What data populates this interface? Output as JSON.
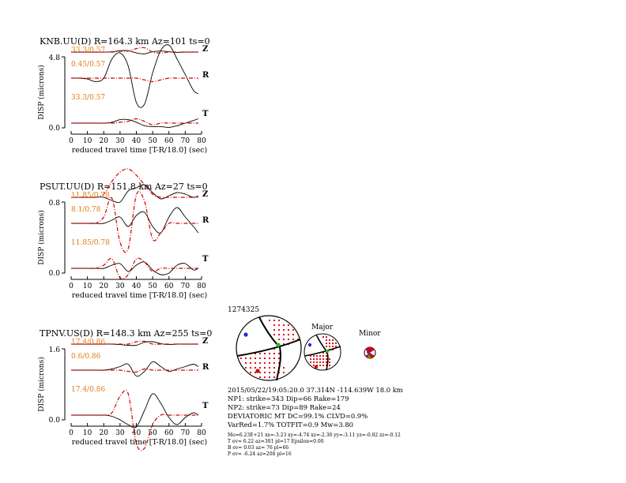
{
  "chart_data": [
    {
      "type": "line",
      "title": "KNB.UU(D) R=164.3 km Az=101 ts=0",
      "ylabel": "DISP (microns)",
      "xlabel": "reduced travel time [T-R/18.0] (sec)",
      "xlim": [
        0,
        80
      ],
      "xticks": [
        "0",
        "10",
        "20",
        "30",
        "40",
        "50",
        "60",
        "70",
        "80"
      ],
      "yticks": [
        "4.8",
        "0.0"
      ],
      "traces": [
        {
          "component": "Z",
          "label": "33.3/0.57",
          "x": [
            0,
            5,
            10,
            15,
            20,
            25,
            30,
            35,
            40,
            45,
            50,
            55,
            60,
            65,
            70,
            75,
            78
          ],
          "observed": [
            0,
            0,
            0,
            0,
            0,
            0.02,
            0.08,
            0.08,
            -0.05,
            -0.1,
            0.02,
            0.06,
            0.02,
            -0.02,
            0,
            0,
            0
          ],
          "synthetic": [
            0,
            0,
            0,
            0,
            0,
            0,
            0.05,
            0.06,
            0.2,
            0.25,
            0,
            -0.05,
            0,
            0,
            0,
            0,
            0
          ]
        },
        {
          "component": "R",
          "label": "0.45/0.57",
          "x": [
            0,
            5,
            10,
            15,
            20,
            25,
            30,
            35,
            40,
            45,
            50,
            55,
            60,
            65,
            70,
            75,
            78
          ],
          "observed": [
            0,
            0,
            -0.05,
            -0.2,
            0,
            1.1,
            1.45,
            0.7,
            -1.4,
            -1.5,
            0.3,
            1.6,
            1.9,
            1.1,
            0.2,
            -0.7,
            -0.9
          ],
          "synthetic": [
            0,
            0,
            0,
            0,
            0,
            0,
            0,
            0,
            0,
            -0.1,
            -0.2,
            -0.1,
            0,
            0,
            0,
            0,
            0
          ]
        },
        {
          "component": "T",
          "label": "33.3/0.57",
          "x": [
            0,
            5,
            10,
            15,
            20,
            25,
            30,
            35,
            40,
            45,
            50,
            55,
            60,
            65,
            70,
            75,
            78
          ],
          "observed": [
            0,
            0,
            0,
            0,
            0,
            0.05,
            0.2,
            0.2,
            0.05,
            -0.15,
            -0.2,
            -0.2,
            -0.25,
            -0.15,
            0,
            0.15,
            0.25
          ],
          "synthetic": [
            0,
            0,
            0,
            0,
            0,
            0,
            0.05,
            0.1,
            0.25,
            0.1,
            -0.1,
            0,
            0,
            0,
            0,
            0,
            0
          ]
        }
      ]
    },
    {
      "type": "line",
      "title": "PSUT.UU(D) R=151.8 km Az=27 ts=0",
      "ylabel": "DISP (microns)",
      "xlabel": "reduced travel time [T-R/18.0] (sec)",
      "xlim": [
        0,
        80
      ],
      "xticks": [
        "0",
        "10",
        "20",
        "30",
        "40",
        "50",
        "60",
        "70",
        "80"
      ],
      "yticks": [
        "0.8",
        "0.0"
      ],
      "traces": [
        {
          "component": "Z",
          "label": "11.85/0.78",
          "x": [
            0,
            5,
            10,
            15,
            20,
            25,
            30,
            35,
            40,
            45,
            50,
            55,
            60,
            65,
            70,
            75,
            78
          ],
          "observed": [
            0,
            0,
            0,
            0,
            0,
            -0.1,
            -0.15,
            0.2,
            0.3,
            0.4,
            0.15,
            -0.05,
            0.05,
            0.15,
            0.1,
            0,
            0.05
          ],
          "synthetic": [
            0,
            0,
            0,
            0,
            0.1,
            0.5,
            0.8,
            0.9,
            0.7,
            0.4,
            0.1,
            0,
            0,
            0,
            0,
            0,
            0
          ]
        },
        {
          "component": "R",
          "label": "8.1/0.78",
          "x": [
            0,
            5,
            10,
            15,
            20,
            25,
            30,
            35,
            40,
            45,
            50,
            55,
            60,
            65,
            70,
            75,
            78
          ],
          "observed": [
            0,
            0,
            0,
            0,
            0,
            0.1,
            0.2,
            -0.1,
            0.25,
            0.35,
            -0.1,
            -0.3,
            0.2,
            0.5,
            0.2,
            -0.1,
            -0.3
          ],
          "synthetic": [
            0,
            0,
            0,
            0,
            0.2,
            0.8,
            -0.6,
            -0.8,
            0.9,
            0.7,
            -0.5,
            -0.3,
            0,
            0,
            0,
            0,
            0
          ]
        },
        {
          "component": "T",
          "label": "11.85/0.78",
          "x": [
            0,
            5,
            10,
            15,
            20,
            25,
            30,
            35,
            40,
            45,
            50,
            55,
            60,
            65,
            70,
            75,
            78
          ],
          "observed": [
            0,
            0,
            0,
            0,
            0,
            0.1,
            0.15,
            -0.1,
            0.1,
            0.2,
            -0.05,
            -0.2,
            -0.15,
            0.1,
            0.15,
            -0.05,
            0
          ],
          "synthetic": [
            0,
            0,
            0,
            0,
            0.1,
            0.3,
            -0.3,
            -0.2,
            0.3,
            0.2,
            -0.1,
            0,
            0,
            0,
            0,
            0,
            0
          ]
        }
      ]
    },
    {
      "type": "line",
      "title": "TPNV.US(D) R=148.3 km Az=255 ts=0",
      "ylabel": "DISP (microns)",
      "xlabel": "reduced travel time [T-R/18.0] (sec)",
      "xlim": [
        0,
        80
      ],
      "xticks": [
        "0",
        "10",
        "20",
        "30",
        "40",
        "50",
        "60",
        "70",
        "80"
      ],
      "yticks": [
        "1.6",
        "0.0"
      ],
      "traces": [
        {
          "component": "Z",
          "label": "17.4/0.86",
          "x": [
            0,
            5,
            10,
            15,
            20,
            25,
            30,
            35,
            40,
            45,
            50,
            55,
            60,
            65,
            70,
            75,
            78
          ],
          "observed": [
            0,
            0,
            0,
            0,
            0,
            0,
            -0.02,
            -0.05,
            -0.05,
            0.08,
            0.1,
            0.02,
            -0.02,
            0,
            0,
            0,
            0
          ],
          "synthetic": [
            0,
            0,
            0,
            0,
            0,
            0,
            0,
            0,
            0.1,
            0.12,
            0,
            0,
            0,
            0,
            0,
            0,
            0
          ]
        },
        {
          "component": "R",
          "label": "0.6/0.86",
          "x": [
            0,
            5,
            10,
            15,
            20,
            25,
            30,
            35,
            40,
            45,
            50,
            55,
            60,
            65,
            70,
            75,
            78
          ],
          "observed": [
            0,
            0,
            0,
            0,
            0,
            0.05,
            0.15,
            0.25,
            -0.25,
            -0.05,
            0.35,
            0.15,
            -0.05,
            0.05,
            0.15,
            0.25,
            0.15
          ],
          "synthetic": [
            0,
            0,
            0,
            0,
            0,
            0,
            0,
            -0.05,
            -0.08,
            0.05,
            0,
            0,
            0,
            0,
            0,
            0,
            0
          ]
        },
        {
          "component": "T",
          "label": "17.4/0.86",
          "x": [
            0,
            5,
            10,
            15,
            20,
            25,
            30,
            35,
            40,
            45,
            50,
            55,
            60,
            65,
            70,
            75,
            78
          ],
          "observed": [
            0,
            0,
            0,
            0,
            0,
            -0.05,
            -0.2,
            -0.4,
            -0.5,
            0.2,
            0.9,
            0.5,
            -0.1,
            -0.4,
            -0.1,
            0.1,
            0
          ],
          "synthetic": [
            0,
            0,
            0,
            0,
            0,
            0.1,
            0.8,
            0.9,
            -1.2,
            -1.4,
            -0.4,
            0,
            0,
            0,
            0,
            0,
            0
          ]
        }
      ]
    }
  ],
  "summary": {
    "event_id": "1274325",
    "major_label": "Major",
    "minor_label": "Minor",
    "lines": [
      "2015/05/22/19:05:20.0 37.314N -114.639W 18.0 km",
      "NP1: strike=343 Dip=66 Rake=179",
      "NP2: strike=73 Dip=89 Rake=24",
      "DEVIATORIC MT DC=99.1% CLVD=0.9%",
      "VarRed=1.7% TOTFIT=0.9 Mw=3.80"
    ],
    "small_lines": [
      "Mo=6.23E+21 xx=-3.23 xy=-4.74 xz=-2.38 yy=-3.11 yz=-0.82 zz=-0.12",
      "T ev=  6.22 az=301 pl=17 Epsilon=0.00",
      "B ev=  0.03 az= 76 pl=66",
      "P ev= -6.24 az=208 pl=16"
    ]
  },
  "colors": {
    "observed": "#000000",
    "synthetic": "#d40000",
    "label": "#e07a10",
    "t_axis": "#d40000",
    "p_axis": "#2030d0",
    "b_axis": "#20c020"
  }
}
